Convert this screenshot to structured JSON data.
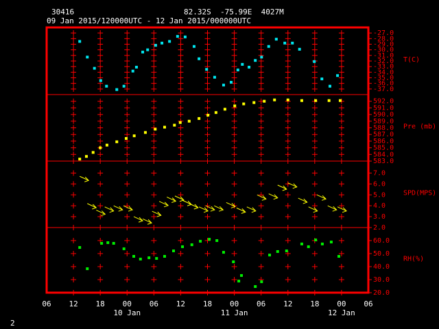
{
  "header": {
    "station": "30416",
    "location": "82.32S  -75.99E  4027M",
    "period": "09 Jan 2015/120000UTC - 12 Jan 2015/000000UTC"
  },
  "page_number": "2",
  "x_axis": {
    "xlim": [
      6,
      78
    ],
    "xticks": [
      {
        "value": 6,
        "label": "06"
      },
      {
        "value": 12,
        "label": "12"
      },
      {
        "value": 18,
        "label": "18"
      },
      {
        "value": 24,
        "label": "00"
      },
      {
        "value": 30,
        "label": "06"
      },
      {
        "value": 36,
        "label": "12"
      },
      {
        "value": 42,
        "label": "18"
      },
      {
        "value": 48,
        "label": "00"
      },
      {
        "value": 54,
        "label": "06"
      },
      {
        "value": 60,
        "label": "12"
      },
      {
        "value": 66,
        "label": "18"
      },
      {
        "value": 72,
        "label": "00"
      },
      {
        "value": 78,
        "label": "06"
      }
    ],
    "date_ticks": [
      {
        "value": 24,
        "label": "10 Jan"
      },
      {
        "value": 48,
        "label": "11 Jan"
      },
      {
        "value": 72,
        "label": "12 Jan"
      }
    ]
  },
  "chart_data": [
    {
      "type": "scatter",
      "label": "T(C)",
      "color": "#00e5ee",
      "ylim": [
        -38,
        -26
      ],
      "yticks": [
        {
          "value": -27,
          "label": "-27.0"
        },
        {
          "value": -28,
          "label": "-28.0"
        },
        {
          "value": -29,
          "label": "-29.0"
        },
        {
          "value": -30,
          "label": "-30.0"
        },
        {
          "value": -31,
          "label": "-31.0"
        },
        {
          "value": -32,
          "label": "-32.0"
        },
        {
          "value": -33,
          "label": "-33.0"
        },
        {
          "value": -34,
          "label": "-34.0"
        },
        {
          "value": -35,
          "label": "-35.0"
        },
        {
          "value": -36,
          "label": "-36.0"
        },
        {
          "value": -37,
          "label": "-37.0"
        }
      ],
      "x": [
        13.4,
        15.1,
        16.7,
        18.1,
        19.4,
        21.7,
        23.3,
        25.3,
        26.1,
        27.5,
        28.6,
        30.4,
        31.8,
        33.5,
        35.3,
        37.0,
        39.0,
        40.1,
        41.8,
        43.6,
        45.6,
        47.3,
        48.8,
        49.8,
        51.3,
        52.7,
        54.1,
        55.7,
        57.4,
        59.3,
        61.0,
        62.6,
        65.9,
        67.6,
        69.4,
        71.1
      ],
      "values": [
        -28.5,
        -31.3,
        -33.3,
        -35.5,
        -36.5,
        -37.1,
        -36.5,
        -33.8,
        -33.1,
        -30.4,
        -30.0,
        -29.2,
        -28.8,
        -28.5,
        -27.6,
        -27.7,
        -29.4,
        -31.6,
        -33.5,
        -34.9,
        -36.3,
        -35.8,
        -33.6,
        -32.6,
        -33.1,
        -31.9,
        -31.3,
        -29.4,
        -28.1,
        -28.8,
        -28.8,
        -29.9,
        -32.1,
        -35.2,
        -36.5,
        -34.6
      ]
    },
    {
      "type": "scatter",
      "label": "Pre (mb)",
      "color": "#ffff00",
      "ylim": [
        583,
        593
      ],
      "yticks": [
        {
          "value": 583,
          "label": "583.0"
        },
        {
          "value": 584,
          "label": "584.0"
        },
        {
          "value": 585,
          "label": "585.0"
        },
        {
          "value": 586,
          "label": "586.0"
        },
        {
          "value": 587,
          "label": "587.0"
        },
        {
          "value": 588,
          "label": "588.0"
        },
        {
          "value": 589,
          "label": "589.0"
        },
        {
          "value": 590,
          "label": "590.0"
        },
        {
          "value": 591,
          "label": "591.0"
        },
        {
          "value": 592,
          "label": "592.0"
        }
      ],
      "x": [
        13.4,
        14.9,
        16.4,
        18.0,
        19.5,
        21.7,
        23.8,
        25.6,
        28.1,
        30.3,
        32.4,
        34.6,
        35.9,
        37.9,
        40.1,
        42.1,
        43.9,
        45.9,
        48.1,
        50.1,
        52.4,
        54.7,
        57.0,
        60.0,
        63.1,
        66.2,
        69.2,
        71.7
      ],
      "values": [
        583.3,
        583.7,
        584.3,
        585.0,
        585.4,
        585.9,
        586.4,
        586.8,
        587.3,
        587.8,
        588.1,
        588.4,
        588.8,
        589.0,
        589.4,
        589.9,
        590.3,
        590.8,
        591.3,
        591.6,
        591.8,
        592.0,
        592.2,
        592.2,
        592.1,
        592.1,
        592.1,
        592.1
      ]
    },
    {
      "type": "vector",
      "label": "SPD(MPS)",
      "color": "#ffff00",
      "ylim": [
        2,
        8.1
      ],
      "yticks": [
        {
          "value": 2,
          "label": "2.0"
        },
        {
          "value": 3,
          "label": "3.0"
        },
        {
          "value": 4,
          "label": "4.0"
        },
        {
          "value": 5,
          "label": "5.0"
        },
        {
          "value": 6,
          "label": "6.0"
        },
        {
          "value": 7,
          "label": "7.0"
        }
      ],
      "x": [
        13.4,
        15.1,
        17.1,
        19.0,
        21.0,
        23.2,
        25.5,
        27.5,
        29.6,
        31.2,
        32.9,
        34.7,
        36.4,
        37.9,
        40.1,
        41.6,
        43.5,
        46.2,
        48.5,
        50.8,
        53.1,
        55.7,
        57.7,
        60.0,
        62.3,
        64.6,
        66.5,
        68.9,
        71.1
      ],
      "values": [
        6.7,
        4.2,
        3.6,
        3.9,
        4.0,
        4.0,
        3.0,
        2.8,
        3.5,
        4.4,
        4.8,
        4.9,
        4.5,
        4.2,
        3.9,
        4.0,
        4.0,
        4.3,
        3.8,
        3.9,
        5.0,
        5.1,
        5.9,
        6.1,
        4.7,
        3.9,
        5.0,
        4.0,
        3.9
      ]
    },
    {
      "type": "scatter",
      "label": "RH(%)",
      "color": "#00ee00",
      "ylim": [
        20,
        70
      ],
      "yticks": [
        {
          "value": 20,
          "label": "20.0"
        },
        {
          "value": 30,
          "label": "30.0"
        },
        {
          "value": 40,
          "label": "40.0"
        },
        {
          "value": 50,
          "label": "50.0"
        },
        {
          "value": 60,
          "label": "60.0"
        }
      ],
      "x": [
        13.4,
        15.1,
        18.3,
        19.7,
        21.0,
        23.3,
        25.5,
        27.0,
        28.9,
        30.6,
        32.4,
        34.4,
        36.4,
        38.5,
        40.4,
        42.4,
        44.1,
        45.6,
        47.8,
        49.0,
        49.6,
        52.7,
        54.1,
        55.9,
        57.7,
        59.7,
        63.1,
        64.6,
        66.2,
        67.7,
        69.7,
        71.4
      ],
      "values": [
        54.7,
        38.4,
        57.9,
        58.4,
        57.9,
        53.7,
        47.9,
        45.8,
        46.8,
        46.3,
        47.9,
        52.1,
        55.3,
        56.8,
        59.5,
        61.0,
        60.0,
        51.0,
        43.7,
        28.9,
        33.2,
        24.7,
        28.4,
        48.9,
        51.6,
        52.1,
        57.4,
        55.3,
        60.5,
        57.4,
        58.9,
        47.9
      ]
    }
  ]
}
